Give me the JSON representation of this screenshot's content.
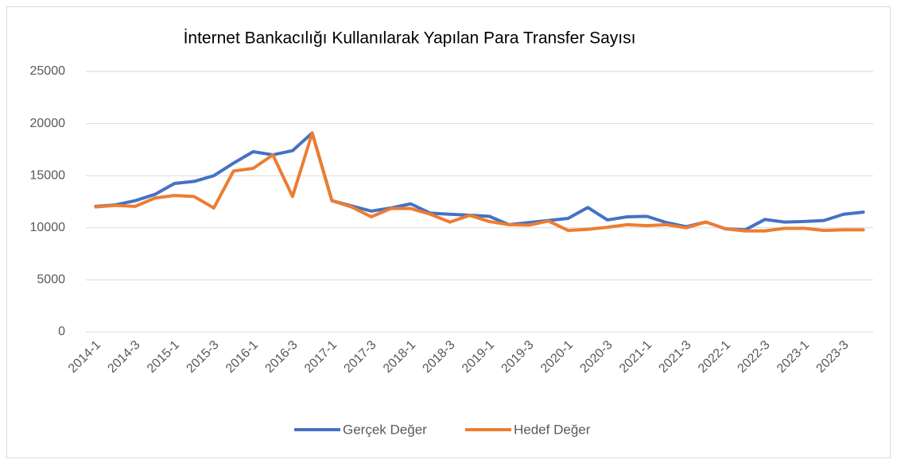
{
  "chart_data": {
    "type": "line",
    "title": "İnternet Bankacılığı Kullanılarak Yapılan Para Transfer Sayısı",
    "categories": [
      "2014-1",
      null,
      "2014-3",
      null,
      "2015-1",
      null,
      "2015-3",
      null,
      "2016-1",
      null,
      "2016-3",
      null,
      "2017-1",
      null,
      "2017-3",
      null,
      "2018-1",
      null,
      "2018-3",
      null,
      "2019-1",
      null,
      "2019-3",
      null,
      "2020-1",
      null,
      "2020-3",
      null,
      "2021-1",
      null,
      "2021-3",
      null,
      "2022-1",
      null,
      "2022-3",
      null,
      "2023-1",
      null,
      "2023-3",
      null
    ],
    "series": [
      {
        "name": "Gerçek Değer",
        "color": "#4472c4",
        "values": [
          12050,
          12200,
          12600,
          13200,
          14250,
          14450,
          15000,
          16200,
          17300,
          17000,
          17400,
          19100,
          12600,
          12100,
          11600,
          11900,
          12300,
          11400,
          11300,
          11200,
          11100,
          10300,
          10500,
          10700,
          10900,
          11950,
          10750,
          11050,
          11100,
          10500,
          10100,
          10550,
          9900,
          9800,
          10800,
          10550,
          10600,
          10700,
          11300,
          11500
        ]
      },
      {
        "name": "Hedef Değer",
        "color": "#ed7d31",
        "values": [
          12000,
          12150,
          12050,
          12850,
          13100,
          13000,
          11900,
          15450,
          15700,
          17000,
          13000,
          19100,
          12600,
          12000,
          11050,
          11850,
          11850,
          11300,
          10550,
          11200,
          10600,
          10300,
          10250,
          10650,
          9750,
          9850,
          10050,
          10300,
          10200,
          10300,
          10000,
          10550,
          9900,
          9700,
          9700,
          9950,
          9950,
          9750,
          9800,
          9800
        ]
      }
    ],
    "ylim": [
      0,
      25000
    ],
    "yticks": [
      0,
      5000,
      10000,
      15000,
      20000,
      25000
    ],
    "grid": true,
    "legend": "bottom"
  }
}
